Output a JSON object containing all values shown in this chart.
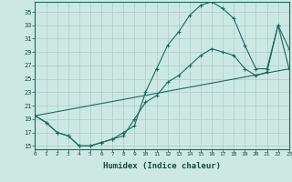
{
  "xlabel": "Humidex (Indice chaleur)",
  "bg_color": "#cce8e3",
  "grid_color": "#aaccca",
  "line_color": "#1a6b5e",
  "xlim": [
    0,
    23
  ],
  "ylim": [
    14.5,
    36.5
  ],
  "xticks": [
    0,
    1,
    2,
    3,
    4,
    5,
    6,
    7,
    8,
    9,
    10,
    11,
    12,
    13,
    14,
    15,
    16,
    17,
    18,
    19,
    20,
    21,
    22,
    23
  ],
  "yticks": [
    15,
    17,
    19,
    21,
    23,
    25,
    27,
    29,
    31,
    33,
    35
  ],
  "curve1_x": [
    0,
    1,
    2,
    3,
    4,
    5,
    6,
    7,
    8,
    9,
    10,
    11,
    12,
    13,
    14,
    15,
    16,
    17,
    18,
    19,
    20,
    21,
    22,
    23
  ],
  "curve1_y": [
    19.5,
    18.5,
    17.0,
    16.5,
    15.0,
    15.0,
    15.5,
    16.0,
    17.0,
    18.0,
    23.0,
    26.5,
    30.0,
    32.0,
    34.5,
    36.0,
    36.5,
    35.5,
    34.0,
    30.0,
    26.5,
    26.5,
    33.0,
    29.5
  ],
  "curve2_x": [
    0,
    1,
    2,
    3,
    4,
    5,
    6,
    7,
    8,
    9,
    10,
    11,
    12,
    13,
    14,
    15,
    16,
    17,
    18,
    19,
    20,
    21,
    22,
    23
  ],
  "curve2_y": [
    19.5,
    18.5,
    17.0,
    16.5,
    15.0,
    15.0,
    15.5,
    16.0,
    16.5,
    19.0,
    21.5,
    22.5,
    24.5,
    25.5,
    27.0,
    28.5,
    29.5,
    29.0,
    28.5,
    26.5,
    25.5,
    26.0,
    33.0,
    26.5
  ],
  "curve3_x": [
    0,
    23
  ],
  "curve3_y": [
    19.5,
    26.5
  ]
}
